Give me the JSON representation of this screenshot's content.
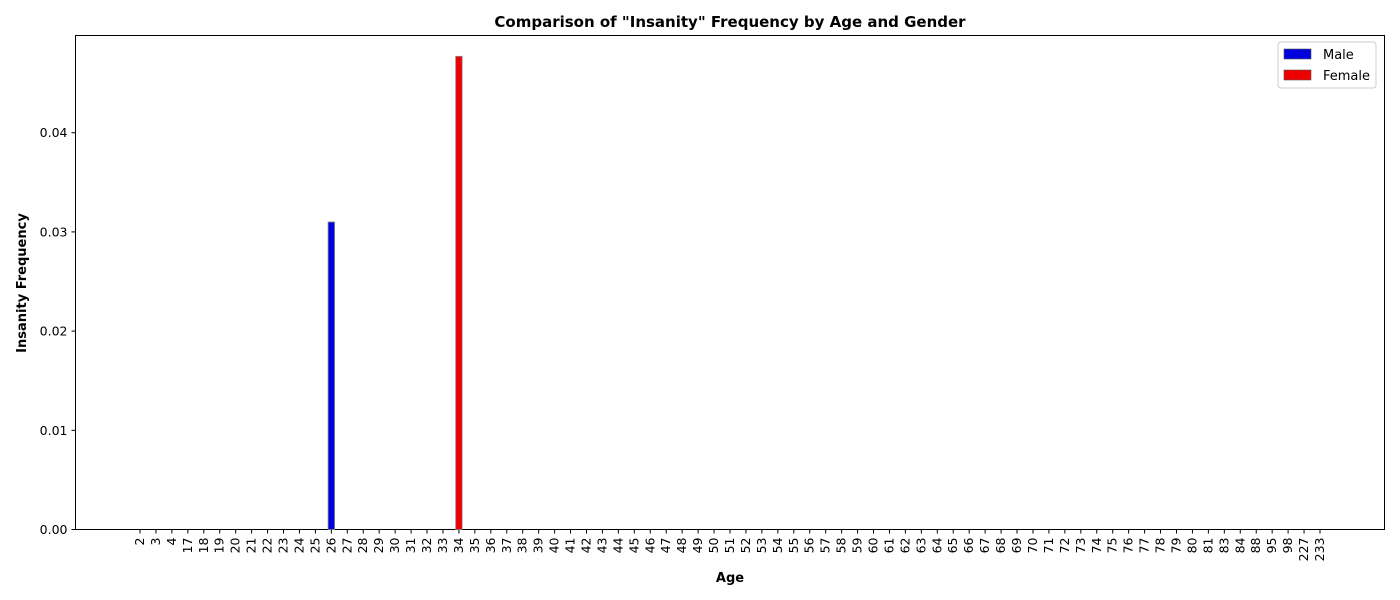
{
  "chart_data": {
    "type": "bar",
    "title": "Comparison of \"Insanity\" Frequency by Age and Gender",
    "xlabel": "Age",
    "ylabel": "Insanity Frequency",
    "ylim": [
      0,
      0.0498
    ],
    "yticks": [
      "0.00",
      "0.01",
      "0.02",
      "0.03",
      "0.04"
    ],
    "ytick_values": [
      0,
      0.01,
      0.02,
      0.03,
      0.04
    ],
    "grid": false,
    "legend_position": "top-right",
    "categories": [
      "2",
      "3",
      "4",
      "17",
      "18",
      "19",
      "20",
      "21",
      "22",
      "23",
      "24",
      "25",
      "26",
      "27",
      "28",
      "29",
      "30",
      "31",
      "32",
      "33",
      "34",
      "35",
      "36",
      "37",
      "38",
      "39",
      "40",
      "41",
      "42",
      "43",
      "44",
      "45",
      "46",
      "47",
      "48",
      "49",
      "50",
      "51",
      "52",
      "53",
      "54",
      "55",
      "56",
      "57",
      "58",
      "59",
      "60",
      "61",
      "62",
      "63",
      "64",
      "65",
      "66",
      "67",
      "68",
      "69",
      "70",
      "71",
      "72",
      "73",
      "74",
      "75",
      "76",
      "77",
      "78",
      "79",
      "80",
      "81",
      "83",
      "84",
      "88",
      "95",
      "98",
      "227",
      "233"
    ],
    "series": [
      {
        "name": "Male",
        "color": "#0000dd",
        "values": [
          0,
          0,
          0,
          0,
          0,
          0,
          0,
          0,
          0,
          0,
          0,
          0,
          0.031,
          0,
          0,
          0,
          0,
          0,
          0,
          0,
          0,
          0,
          0,
          0,
          0,
          0,
          0,
          0,
          0,
          0,
          0,
          0,
          0,
          0,
          0,
          0,
          0,
          0,
          0,
          0,
          0,
          0,
          0,
          0,
          0,
          0,
          0,
          0,
          0,
          0,
          0,
          0,
          0,
          0,
          0,
          0,
          0,
          0,
          0,
          0,
          0,
          0,
          0,
          0,
          0,
          0,
          0,
          0,
          0,
          0,
          0,
          0,
          0,
          0,
          0
        ]
      },
      {
        "name": "Female",
        "color": "#ee0000",
        "values": [
          0,
          0,
          0,
          0,
          0,
          0,
          0,
          0,
          0,
          0,
          0,
          0,
          0,
          0,
          0,
          0,
          0,
          0,
          0,
          0,
          0.0477,
          0,
          0,
          0,
          0,
          0,
          0,
          0,
          0,
          0,
          0,
          0,
          0,
          0,
          0,
          0,
          0,
          0,
          0,
          0,
          0,
          0,
          0,
          0,
          0,
          0,
          0,
          0,
          0,
          0,
          0,
          0,
          0,
          0,
          0,
          0,
          0,
          0,
          0,
          0,
          0,
          0,
          0,
          0,
          0,
          0,
          0,
          0,
          0,
          0,
          0,
          0,
          0,
          0,
          0
        ]
      }
    ]
  }
}
